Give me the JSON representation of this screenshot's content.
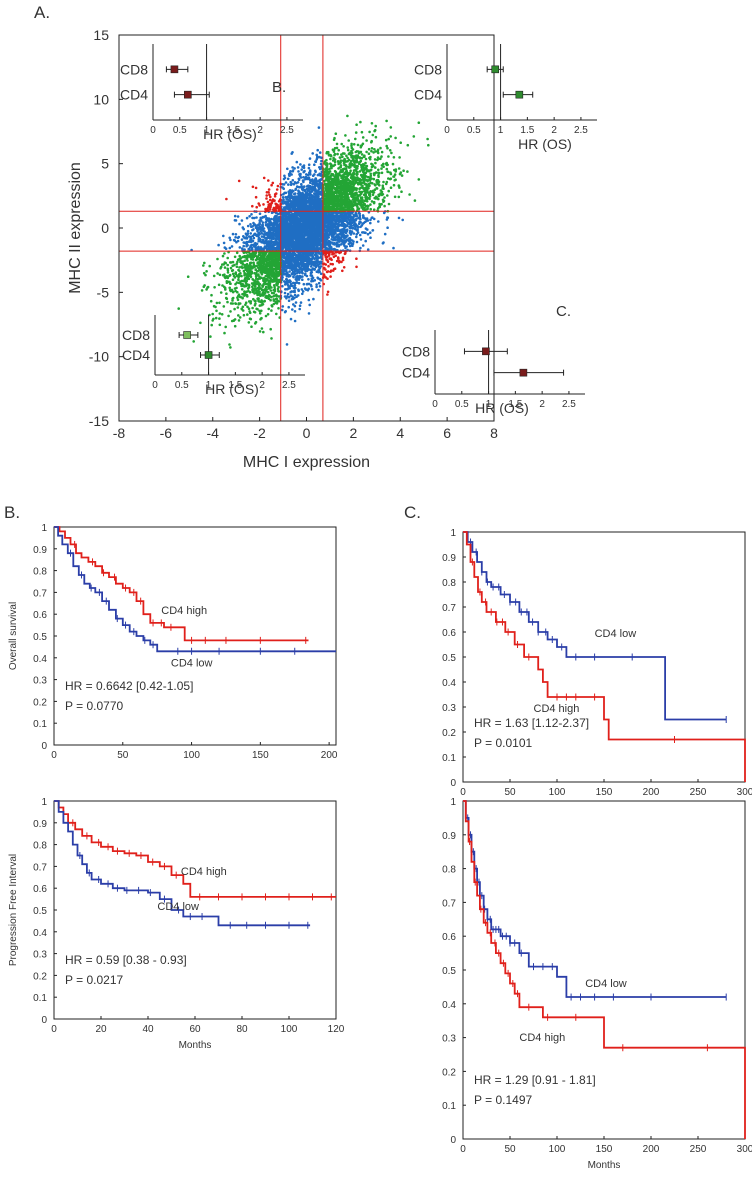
{
  "panel_labels": {
    "a": "A.",
    "b": "B.",
    "c": "C."
  },
  "chart_data": [
    {
      "id": "scatter",
      "type": "scatter",
      "title": "",
      "xlabel": "MHC I expression",
      "ylabel": "MHC II expression",
      "xlim": [
        -8,
        8
      ],
      "ylim": [
        -15,
        15
      ],
      "xticks": [
        "-8",
        "-6",
        "-4",
        "-2",
        "0",
        "2",
        "4",
        "6",
        "8"
      ],
      "yticks": [
        "15",
        "10",
        "5",
        "0",
        "-5",
        "-10",
        "-15"
      ],
      "thresholds": {
        "x": [
          -1.1,
          0.7
        ],
        "y": [
          1.3,
          -1.8
        ]
      },
      "colors": {
        "up": "#23a535",
        "down": "#23a535",
        "mixed": "#e0201b",
        "middle": "#1f6ec3",
        "threshold_line": "#e0201b"
      },
      "inset_labels": {
        "b": "B.",
        "c": "C."
      },
      "forest_insets": [
        {
          "id": "inset-top-left",
          "xlabel": "HR (OS)",
          "xlim": [
            0,
            2.8
          ],
          "xticks": [
            "0",
            "0.5",
            "1",
            "1.5",
            "2",
            "2.5"
          ],
          "rows": [
            {
              "label": "CD8",
              "hr": 0.4,
              "lo": 0.25,
              "hi": 0.65,
              "color": "#7a1c1c"
            },
            {
              "label": "CD4",
              "hr": 0.65,
              "lo": 0.4,
              "hi": 1.05,
              "color": "#7a1c1c"
            }
          ]
        },
        {
          "id": "inset-top-right",
          "xlabel": "HR (OS)",
          "xlim": [
            0,
            2.8
          ],
          "xticks": [
            "0",
            "0.5",
            "1",
            "1.5",
            "2",
            "2.5"
          ],
          "rows": [
            {
              "label": "CD8",
              "hr": 0.9,
              "lo": 0.75,
              "hi": 1.05,
              "color": "#2e8b2e"
            },
            {
              "label": "CD4",
              "hr": 1.35,
              "lo": 1.05,
              "hi": 1.6,
              "color": "#2e8b2e"
            }
          ]
        },
        {
          "id": "inset-bottom-left",
          "xlabel": "HR (OS)",
          "xlim": [
            0,
            2.8
          ],
          "xticks": [
            "0",
            "0.5",
            "1",
            "1.5",
            "2",
            "2.5"
          ],
          "rows": [
            {
              "label": "CD8",
              "hr": 0.6,
              "lo": 0.45,
              "hi": 0.8,
              "color": "#7fbf5f"
            },
            {
              "label": "CD4",
              "hr": 1.0,
              "lo": 0.85,
              "hi": 1.2,
              "color": "#2e8b2e"
            }
          ]
        },
        {
          "id": "inset-bottom-right",
          "xlabel": "HR (OS)",
          "xlim": [
            0,
            2.8
          ],
          "xticks": [
            "0",
            "0.5",
            "1",
            "1.5",
            "2",
            "2.5"
          ],
          "rows": [
            {
              "label": "CD8",
              "hr": 0.95,
              "lo": 0.55,
              "hi": 1.35,
              "color": "#7a1c1c"
            },
            {
              "label": "CD4",
              "hr": 1.65,
              "lo": 1.1,
              "hi": 2.4,
              "color": "#7a1c1c"
            }
          ]
        }
      ]
    },
    {
      "id": "km-b-os",
      "type": "line",
      "panel": "B.",
      "xlabel": "",
      "ylabel": "Overall survival",
      "xlim": [
        0,
        205
      ],
      "ylim": [
        0,
        1
      ],
      "xticks": [
        0,
        50,
        100,
        150,
        200
      ],
      "yticks": [
        0,
        0.1,
        0.2,
        0.3,
        0.4,
        0.5,
        0.6,
        0.7,
        0.8,
        0.9,
        1
      ],
      "stats": [
        "HR = 0.6642 [0.42-1.05]",
        "P = 0.0770"
      ],
      "series": [
        {
          "name": "CD4 high",
          "color": "#e0201b",
          "label_at": [
            78,
            0.6
          ],
          "steps": [
            [
              0,
              1
            ],
            [
              4,
              0.98
            ],
            [
              8,
              0.95
            ],
            [
              12,
              0.92
            ],
            [
              16,
              0.88
            ],
            [
              20,
              0.86
            ],
            [
              25,
              0.84
            ],
            [
              30,
              0.82
            ],
            [
              35,
              0.79
            ],
            [
              40,
              0.77
            ],
            [
              45,
              0.74
            ],
            [
              50,
              0.72
            ],
            [
              55,
              0.7
            ],
            [
              60,
              0.66
            ],
            [
              65,
              0.6
            ],
            [
              70,
              0.56
            ],
            [
              80,
              0.54
            ],
            [
              95,
              0.48
            ],
            [
              185,
              0.48
            ]
          ],
          "censor": [
            15,
            28,
            36,
            44,
            52,
            58,
            63,
            72,
            78,
            85,
            100,
            110,
            125,
            150,
            183
          ]
        },
        {
          "name": "CD4 low",
          "color": "#2b3ea8",
          "label_at": [
            85,
            0.36
          ],
          "steps": [
            [
              0,
              1
            ],
            [
              3,
              0.96
            ],
            [
              6,
              0.92
            ],
            [
              10,
              0.88
            ],
            [
              14,
              0.82
            ],
            [
              18,
              0.78
            ],
            [
              22,
              0.74
            ],
            [
              26,
              0.72
            ],
            [
              30,
              0.7
            ],
            [
              35,
              0.66
            ],
            [
              40,
              0.62
            ],
            [
              45,
              0.58
            ],
            [
              50,
              0.55
            ],
            [
              55,
              0.52
            ],
            [
              60,
              0.5
            ],
            [
              65,
              0.48
            ],
            [
              70,
              0.46
            ],
            [
              75,
              0.43
            ],
            [
              205,
              0.43
            ]
          ],
          "censor": [
            12,
            20,
            27,
            33,
            38,
            46,
            52,
            58,
            66,
            72,
            90,
            100,
            120,
            150,
            175
          ]
        }
      ]
    },
    {
      "id": "km-b-pfi",
      "type": "line",
      "panel": "B.",
      "xlabel": "Months",
      "ylabel": "Progression Free Interval",
      "xlim": [
        0,
        120
      ],
      "ylim": [
        0,
        1
      ],
      "xticks": [
        0,
        20,
        40,
        60,
        80,
        100,
        120
      ],
      "yticks": [
        0,
        0.1,
        0.2,
        0.3,
        0.4,
        0.5,
        0.6,
        0.7,
        0.8,
        0.9,
        1
      ],
      "stats": [
        "HR = 0.59 [0.38 - 0.93]",
        "P = 0.0217"
      ],
      "series": [
        {
          "name": "CD4 high",
          "color": "#e0201b",
          "label_at": [
            54,
            0.66
          ],
          "steps": [
            [
              0,
              1
            ],
            [
              2,
              0.97
            ],
            [
              4,
              0.94
            ],
            [
              6,
              0.9
            ],
            [
              9,
              0.87
            ],
            [
              12,
              0.84
            ],
            [
              16,
              0.81
            ],
            [
              20,
              0.79
            ],
            [
              25,
              0.77
            ],
            [
              30,
              0.76
            ],
            [
              35,
              0.75
            ],
            [
              40,
              0.72
            ],
            [
              45,
              0.7
            ],
            [
              50,
              0.66
            ],
            [
              55,
              0.62
            ],
            [
              58,
              0.56
            ],
            [
              120,
              0.56
            ]
          ],
          "censor": [
            8,
            14,
            19,
            23,
            27,
            32,
            37,
            42,
            47,
            52,
            62,
            70,
            80,
            90,
            100,
            110,
            118
          ]
        },
        {
          "name": "CD4 low",
          "color": "#2b3ea8",
          "label_at": [
            44,
            0.5
          ],
          "steps": [
            [
              0,
              1
            ],
            [
              2,
              0.95
            ],
            [
              4,
              0.9
            ],
            [
              6,
              0.86
            ],
            [
              8,
              0.8
            ],
            [
              10,
              0.75
            ],
            [
              12,
              0.71
            ],
            [
              14,
              0.67
            ],
            [
              16,
              0.64
            ],
            [
              20,
              0.62
            ],
            [
              25,
              0.6
            ],
            [
              30,
              0.59
            ],
            [
              40,
              0.58
            ],
            [
              45,
              0.55
            ],
            [
              50,
              0.5
            ],
            [
              55,
              0.47
            ],
            [
              65,
              0.47
            ],
            [
              70,
              0.43
            ],
            [
              109,
              0.43
            ]
          ],
          "censor": [
            11,
            15,
            19,
            23,
            27,
            31,
            36,
            41,
            47,
            53,
            58,
            63,
            75,
            82,
            90,
            100,
            108
          ]
        }
      ]
    },
    {
      "id": "km-c-os",
      "type": "line",
      "panel": "C.",
      "xlabel": "",
      "ylabel": "",
      "xlim": [
        0,
        300
      ],
      "ylim": [
        0,
        1
      ],
      "xticks": [
        0,
        50,
        100,
        150,
        200,
        250,
        300
      ],
      "yticks": [
        0,
        0.1,
        0.2,
        0.3,
        0.4,
        0.5,
        0.6,
        0.7,
        0.8,
        0.9,
        1
      ],
      "stats": [
        "HR = 1.63 [1.12-2.37]",
        "P = 0.0101"
      ],
      "series": [
        {
          "name": "CD4 low",
          "color": "#2b3ea8",
          "label_at": [
            140,
            0.58
          ],
          "steps": [
            [
              0,
              1
            ],
            [
              5,
              0.96
            ],
            [
              10,
              0.92
            ],
            [
              15,
              0.88
            ],
            [
              20,
              0.84
            ],
            [
              25,
              0.8
            ],
            [
              30,
              0.78
            ],
            [
              40,
              0.75
            ],
            [
              50,
              0.72
            ],
            [
              60,
              0.68
            ],
            [
              70,
              0.64
            ],
            [
              80,
              0.6
            ],
            [
              90,
              0.57
            ],
            [
              100,
              0.54
            ],
            [
              110,
              0.5
            ],
            [
              215,
              0.5
            ],
            [
              215,
              0.25
            ],
            [
              280,
              0.25
            ]
          ],
          "censor": [
            8,
            14,
            20,
            26,
            32,
            38,
            44,
            50,
            56,
            62,
            68,
            74,
            80,
            88,
            95,
            105,
            120,
            140,
            180,
            280
          ]
        },
        {
          "name": "CD4 high",
          "color": "#e0201b",
          "label_at": [
            75,
            0.28
          ],
          "steps": [
            [
              0,
              1
            ],
            [
              4,
              0.95
            ],
            [
              8,
              0.88
            ],
            [
              12,
              0.82
            ],
            [
              16,
              0.76
            ],
            [
              20,
              0.72
            ],
            [
              25,
              0.68
            ],
            [
              35,
              0.64
            ],
            [
              45,
              0.6
            ],
            [
              55,
              0.55
            ],
            [
              65,
              0.5
            ],
            [
              80,
              0.45
            ],
            [
              85,
              0.4
            ],
            [
              90,
              0.34
            ],
            [
              150,
              0.34
            ],
            [
              150,
              0.25
            ],
            [
              155,
              0.17
            ],
            [
              300,
              0.17
            ],
            [
              300,
              0
            ]
          ],
          "censor": [
            10,
            18,
            24,
            30,
            36,
            42,
            48,
            58,
            70,
            100,
            110,
            120,
            140,
            225
          ]
        }
      ]
    },
    {
      "id": "km-c-pfi",
      "type": "line",
      "panel": "C.",
      "xlabel": "Months",
      "ylabel": "",
      "xlim": [
        0,
        300
      ],
      "ylim": [
        0,
        1
      ],
      "xticks": [
        0,
        50,
        100,
        150,
        200,
        250,
        300
      ],
      "yticks": [
        0,
        0.1,
        0.2,
        0.3,
        0.4,
        0.5,
        0.6,
        0.7,
        0.8,
        0.9,
        1
      ],
      "stats": [
        "HR = 1.29 [0.91 - 1.81]",
        "P = 0.1497"
      ],
      "series": [
        {
          "name": "CD4 low",
          "color": "#2b3ea8",
          "label_at": [
            130,
            0.45
          ],
          "steps": [
            [
              0,
              1
            ],
            [
              3,
              0.95
            ],
            [
              6,
              0.9
            ],
            [
              9,
              0.85
            ],
            [
              12,
              0.8
            ],
            [
              15,
              0.76
            ],
            [
              18,
              0.72
            ],
            [
              22,
              0.68
            ],
            [
              26,
              0.65
            ],
            [
              30,
              0.62
            ],
            [
              40,
              0.6
            ],
            [
              50,
              0.58
            ],
            [
              60,
              0.55
            ],
            [
              70,
              0.51
            ],
            [
              90,
              0.51
            ],
            [
              100,
              0.48
            ],
            [
              110,
              0.42
            ],
            [
              280,
              0.42
            ]
          ],
          "censor": [
            5,
            8,
            11,
            14,
            17,
            20,
            23,
            26,
            29,
            32,
            35,
            38,
            42,
            46,
            50,
            55,
            62,
            75,
            85,
            95,
            115,
            125,
            140,
            160,
            200,
            280
          ]
        },
        {
          "name": "CD4 high",
          "color": "#e0201b",
          "label_at": [
            60,
            0.29
          ],
          "steps": [
            [
              0,
              1
            ],
            [
              3,
              0.94
            ],
            [
              6,
              0.88
            ],
            [
              9,
              0.82
            ],
            [
              12,
              0.76
            ],
            [
              15,
              0.72
            ],
            [
              18,
              0.68
            ],
            [
              22,
              0.64
            ],
            [
              26,
              0.61
            ],
            [
              30,
              0.58
            ],
            [
              35,
              0.55
            ],
            [
              40,
              0.52
            ],
            [
              45,
              0.49
            ],
            [
              50,
              0.46
            ],
            [
              55,
              0.43
            ],
            [
              60,
              0.39
            ],
            [
              85,
              0.36
            ],
            [
              150,
              0.36
            ],
            [
              150,
              0.27
            ],
            [
              300,
              0.27
            ],
            [
              300,
              0
            ]
          ],
          "censor": [
            7,
            13,
            19,
            24,
            29,
            34,
            38,
            43,
            48,
            53,
            58,
            70,
            90,
            120,
            170,
            260
          ]
        }
      ]
    }
  ]
}
